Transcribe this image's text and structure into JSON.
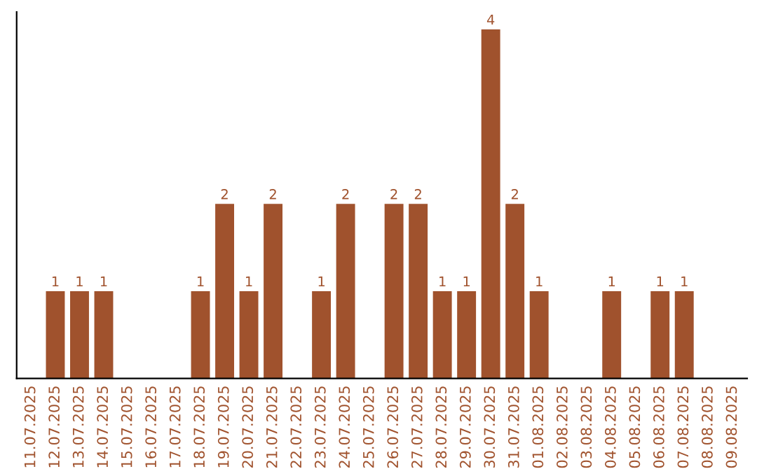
{
  "chart_data": {
    "type": "bar",
    "categories": [
      "11.07.2025",
      "12.07.2025",
      "13.07.2025",
      "14.07.2025",
      "15.07.2025",
      "16.07.2025",
      "17.07.2025",
      "18.07.2025",
      "19.07.2025",
      "20.07.2025",
      "21.07.2025",
      "22.07.2025",
      "23.07.2025",
      "24.07.2025",
      "25.07.2025",
      "26.07.2025",
      "27.07.2025",
      "28.07.2025",
      "29.07.2025",
      "30.07.2025",
      "31.07.2025",
      "01.08.2025",
      "02.08.2025",
      "03.08.2025",
      "04.08.2025",
      "05.08.2025",
      "06.08.2025",
      "07.08.2025",
      "08.08.2025",
      "09.08.2025"
    ],
    "values": [
      0,
      1,
      1,
      1,
      0,
      0,
      0,
      1,
      2,
      1,
      2,
      0,
      1,
      2,
      0,
      2,
      2,
      1,
      1,
      4,
      2,
      1,
      0,
      0,
      1,
      0,
      1,
      1,
      0,
      0
    ],
    "value_labels": [
      null,
      "1",
      "1",
      "1",
      null,
      null,
      null,
      "1",
      "2",
      "1",
      "2",
      null,
      "1",
      "2",
      null,
      "2",
      "2",
      "1",
      "1",
      "4",
      "2",
      "1",
      null,
      null,
      "1",
      null,
      "1",
      "1",
      null,
      null
    ],
    "color": "#a0522d",
    "tick_labels": "x",
    "grid": false,
    "legend": false
  }
}
